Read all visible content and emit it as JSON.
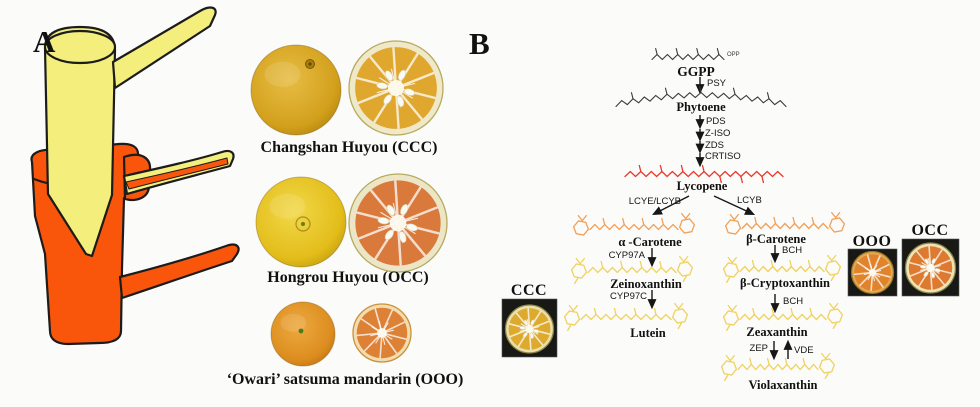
{
  "figure": {
    "background": "#fbfbfa",
    "panel_a": {
      "label": "A",
      "cultivar_rows": [
        {
          "label": "Changshan Huyou (CCC)"
        },
        {
          "label": "Hongrou Huyou (OCC)"
        },
        {
          "label": "‘Owari’ satsuma mandarin (OOO)"
        }
      ]
    },
    "panel_b": {
      "label": "B",
      "metabolites": {
        "ggpp": "GGPP",
        "opp_tag": "OPP",
        "phytoene": "Phytoene",
        "lycopene": "Lycopene",
        "alpha_carotene": "α -Carotene",
        "zeinoxanthin": "Zeinoxanthin",
        "lutein": "Lutein",
        "beta_carotene": "β-Carotene",
        "beta_cryptoxanthin": "β-Cryptoxanthin",
        "zeaxanthin": "Zeaxanthin",
        "violaxanthin": "Violaxanthin"
      },
      "enzymes": {
        "psy": "PSY",
        "pds": "PDS",
        "ziso": "Z-ISO",
        "zds": "ZDS",
        "crtiso": "CRTISO",
        "lcye_lcyb": "LCYE/LCYB",
        "lcyb": "LCYB",
        "cyp97a": "CYP97A",
        "cyp97c": "CYP97C",
        "bch_1": "BCH",
        "bch_2": "BCH",
        "zep": "ZEP",
        "vde": "VDE"
      },
      "photo_labels": {
        "ccc": "CCC",
        "ooo": "OOO",
        "occ": "OCC"
      }
    },
    "colors": {
      "scion_yellow": "#f4ee7d",
      "rootstock_orange": "#f9560b",
      "outline_black": "#1c1c1c",
      "precursor_black": "#3a3a3a",
      "lycopene_red": "#e8382c",
      "carotene_orange": "#f0a058",
      "xanthophyll_yellow": "#efd25e",
      "arrow_black": "#161616"
    }
  }
}
